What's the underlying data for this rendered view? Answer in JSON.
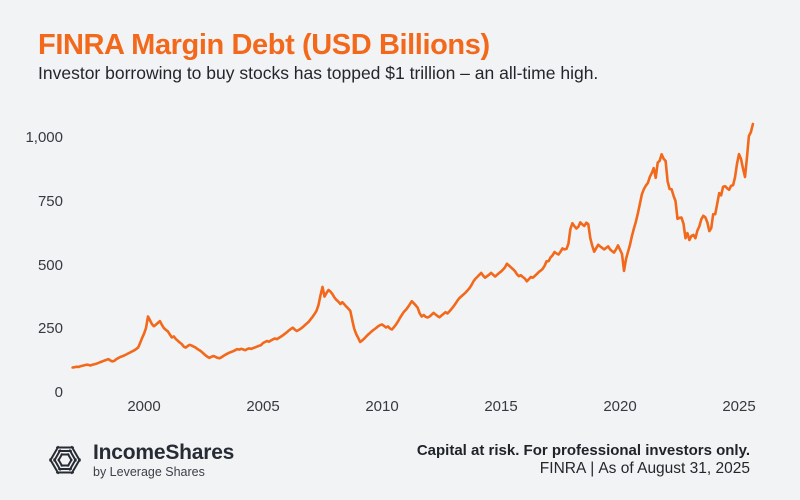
{
  "header": {
    "title": "FINRA Margin Debt (USD Billions)",
    "subtitle": "Investor borrowing to buy stocks has topped $1 trillion – an all-time high."
  },
  "footer": {
    "brand": {
      "name": "IncomeShares",
      "byline": "by Leverage Shares",
      "logo_icon": "hexagon-hatch-logo"
    },
    "disclaimer": "Capital at risk. For professional investors only.",
    "source": "FINRA",
    "separator": "|",
    "as_of": "As of August 31, 2025"
  },
  "colors": {
    "background": "#F2F3F5",
    "accent_orange": "#F2691C",
    "text_dark": "#24262B",
    "footer_dark": "#272B33",
    "tick_text": "#36393F"
  },
  "chart_data": {
    "type": "line",
    "title": "FINRA Margin Debt (USD Billions)",
    "subtitle": "Investor borrowing to buy stocks has topped $1 trillion – an all-time high.",
    "unit": "USD billions",
    "frequency": "monthly",
    "start": "1997-01",
    "end": "2025-08",
    "grid": false,
    "legend": "none",
    "xlim": [
      1996.9,
      2026.3
    ],
    "ylim": [
      0,
      1080
    ],
    "xticks": [
      {
        "year": 2000,
        "label": "2000"
      },
      {
        "year": 2005,
        "label": "2005"
      },
      {
        "year": 2010,
        "label": "2010"
      },
      {
        "year": 2015,
        "label": "2015"
      },
      {
        "year": 2020,
        "label": "2020"
      },
      {
        "year": 2025,
        "label": "2025"
      }
    ],
    "yticks": [
      {
        "value": 0,
        "label": "0"
      },
      {
        "value": 250,
        "label": "250"
      },
      {
        "value": 500,
        "label": "500"
      },
      {
        "value": 750,
        "label": "750"
      },
      {
        "value": 1000,
        "label": "1,000"
      }
    ],
    "series": [
      {
        "name": "FINRA margin debt ($B)",
        "values": [
          100,
          101,
          103,
          102,
          105,
          107,
          109,
          111,
          110,
          108,
          111,
          113,
          115,
          118,
          121,
          124,
          127,
          130,
          133,
          128,
          124,
          126,
          132,
          137,
          141,
          144,
          147,
          151,
          155,
          159,
          163,
          167,
          172,
          178,
          195,
          215,
          232,
          255,
          300,
          286,
          270,
          262,
          268,
          275,
          282,
          268,
          255,
          248,
          242,
          230,
          218,
          222,
          212,
          205,
          198,
          192,
          182,
          178,
          184,
          189,
          186,
          182,
          178,
          172,
          168,
          162,
          155,
          148,
          142,
          138,
          142,
          145,
          142,
          138,
          136,
          140,
          145,
          150,
          154,
          158,
          161,
          164,
          168,
          172,
          170,
          173,
          171,
          168,
          172,
          175,
          173,
          176,
          179,
          182,
          185,
          188,
          196,
          200,
          204,
          201,
          206,
          210,
          214,
          211,
          216,
          221,
          226,
          232,
          238,
          245,
          251,
          256,
          249,
          243,
          247,
          252,
          258,
          265,
          272,
          279,
          289,
          299,
          310,
          323,
          345,
          383,
          416,
          378,
          392,
          404,
          398,
          388,
          375,
          365,
          358,
          349,
          356,
          348,
          339,
          331,
          322,
          285,
          252,
          231,
          216,
          200,
          206,
          213,
          221,
          229,
          236,
          243,
          249,
          255,
          261,
          266,
          269,
          263,
          257,
          261,
          253,
          249,
          258,
          268,
          280,
          294,
          306,
          318,
          326,
          336,
          348,
          360,
          352,
          344,
          334,
          312,
          300,
          306,
          299,
          296,
          300,
          307,
          314,
          308,
          302,
          297,
          304,
          310,
          317,
          312,
          320,
          329,
          339,
          350,
          362,
          372,
          379,
          386,
          393,
          401,
          410,
          422,
          436,
          447,
          455,
          463,
          471,
          460,
          452,
          458,
          464,
          471,
          464,
          457,
          463,
          470,
          476,
          484,
          493,
          507,
          500,
          493,
          486,
          478,
          466,
          458,
          462,
          455,
          449,
          438,
          446,
          455,
          452,
          459,
          466,
          474,
          480,
          487,
          499,
          517,
          517,
          532,
          540,
          553,
          547,
          543,
          554,
          567,
          563,
          565,
          585,
          643,
          666,
          654,
          645,
          652,
          669,
          661,
          655,
          668,
          662,
          607,
          578,
          554,
          568,
          581,
          575,
          569,
          563,
          569,
          575,
          563,
          556,
          551,
          563,
          579,
          562,
          545,
          479,
          525,
          552,
          580,
          615,
          645,
          672,
          705,
          740,
          778,
          799,
          813,
          823,
          847,
          862,
          882,
          844,
          903,
          911,
          936,
          919,
          910,
          830,
          800,
          799,
          773,
          753,
          683,
          687,
          688,
          664,
          607,
          627,
          600,
          616,
          620,
          607,
          637,
          653,
          681,
          695,
          689,
          670,
          635,
          646,
          701,
          701,
          742,
          784,
          775,
          809,
          811,
          803,
          797,
          813,
          815,
          846,
          899,
          937,
          918,
          880,
          847,
          921,
          1008,
          1023,
          1055
        ]
      }
    ]
  }
}
